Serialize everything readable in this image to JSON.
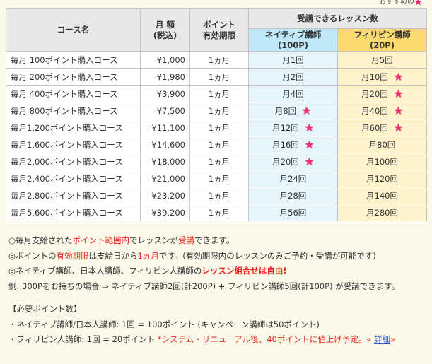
{
  "corner_note": "おすすめの",
  "table": {
    "headers": {
      "course": "コース名",
      "price": [
        "月 額",
        "(税込)"
      ],
      "period": [
        "ポイント",
        "有効期限"
      ],
      "lessons": "受講できるレッスン数",
      "native": [
        "ネイティブ講師",
        "(100P)"
      ],
      "filipino": [
        "フィリピン講師",
        "(20P)"
      ]
    },
    "rows": [
      {
        "course": "毎月 100ポイント購入コース",
        "price": "¥1,000",
        "period": "1ヵ月",
        "native": {
          "text": "月1回",
          "star": false
        },
        "filipino": {
          "text": "月5回",
          "star": false
        }
      },
      {
        "course": "毎月 200ポイント購入コース",
        "price": "¥1,980",
        "period": "1ヵ月",
        "native": {
          "text": "月2回",
          "star": false
        },
        "filipino": {
          "text": "月10回",
          "star": true
        }
      },
      {
        "course": "毎月 400ポイント購入コース",
        "price": "¥3,900",
        "period": "1ヵ月",
        "native": {
          "text": "月4回",
          "star": false
        },
        "filipino": {
          "text": "月20回",
          "star": true
        }
      },
      {
        "course": "毎月 800ポイント購入コース",
        "price": "¥7,500",
        "period": "1ヵ月",
        "native": {
          "text": "月8回",
          "star": true
        },
        "filipino": {
          "text": "月40回",
          "star": true
        }
      },
      {
        "course": "毎月1,200ポイント購入コース",
        "price": "¥11,100",
        "period": "1ヵ月",
        "native": {
          "text": "月12回",
          "star": true
        },
        "filipino": {
          "text": "月60回",
          "star": true
        }
      },
      {
        "course": "毎月1,600ポイント購入コース",
        "price": "¥14,600",
        "period": "1ヵ月",
        "native": {
          "text": "月16回",
          "star": true
        },
        "filipino": {
          "text": "月80回",
          "star": false
        }
      },
      {
        "course": "毎月2,000ポイント購入コース",
        "price": "¥18,000",
        "period": "1ヵ月",
        "native": {
          "text": "月20回",
          "star": true
        },
        "filipino": {
          "text": "月100回",
          "star": false
        }
      },
      {
        "course": "毎月2,400ポイント購入コース",
        "price": "¥21,000",
        "period": "1ヵ月",
        "native": {
          "text": "月24回",
          "star": false
        },
        "filipino": {
          "text": "月120回",
          "star": false
        }
      },
      {
        "course": "毎月2,800ポイント購入コース",
        "price": "¥23,200",
        "period": "1ヵ月",
        "native": {
          "text": "月28回",
          "star": false
        },
        "filipino": {
          "text": "月140回",
          "star": false
        }
      },
      {
        "course": "毎月5,600ポイント購入コース",
        "price": "¥39,200",
        "period": "1ヵ月",
        "native": {
          "text": "月56回",
          "star": false
        },
        "filipino": {
          "text": "月280回",
          "star": false
        }
      }
    ]
  },
  "notes": [
    [
      {
        "text": "◎毎月支給された"
      },
      {
        "text": "ポイント範囲内",
        "style": "red"
      },
      {
        "text": "でレッスンが"
      },
      {
        "text": "受講",
        "style": "red"
      },
      {
        "text": "できます。"
      }
    ],
    [
      {
        "text": "◎ポイントの"
      },
      {
        "text": "有効期限",
        "style": "red"
      },
      {
        "text": "は支給日から"
      },
      {
        "text": "1ヵ月",
        "style": "red"
      },
      {
        "text": "です。(有効期限内のレッスンのみご予約・受講が可能です)"
      }
    ],
    [
      {
        "text": "◎ネイティブ講師、日本人講師、フィリピン人講師の"
      },
      {
        "text": "レッスン組合せは自由!",
        "style": "red"
      }
    ],
    [
      {
        "text": "例: 300Pをお持ちの場合 ⇒ ネイティブ講師2回(計200P) + フィリピン講師5回(計100P) が受講できます。"
      }
    ]
  ],
  "points": {
    "title": "【必要ポイント数】",
    "lines": [
      [
        {
          "text": "・ネイティブ講師/日本人講師: 1回 = 100ポイント (キャンペーン講師は50ポイント)"
        }
      ],
      [
        {
          "text": "・フィリピン人講師: 1回 = 20ポイント "
        },
        {
          "text": "*システム・リニューアル後、40ポイントに値上げ予定。« ",
          "style": "red"
        },
        {
          "text": "詳細",
          "style": "link"
        },
        {
          "text": "»",
          "style": "red"
        }
      ]
    ]
  }
}
